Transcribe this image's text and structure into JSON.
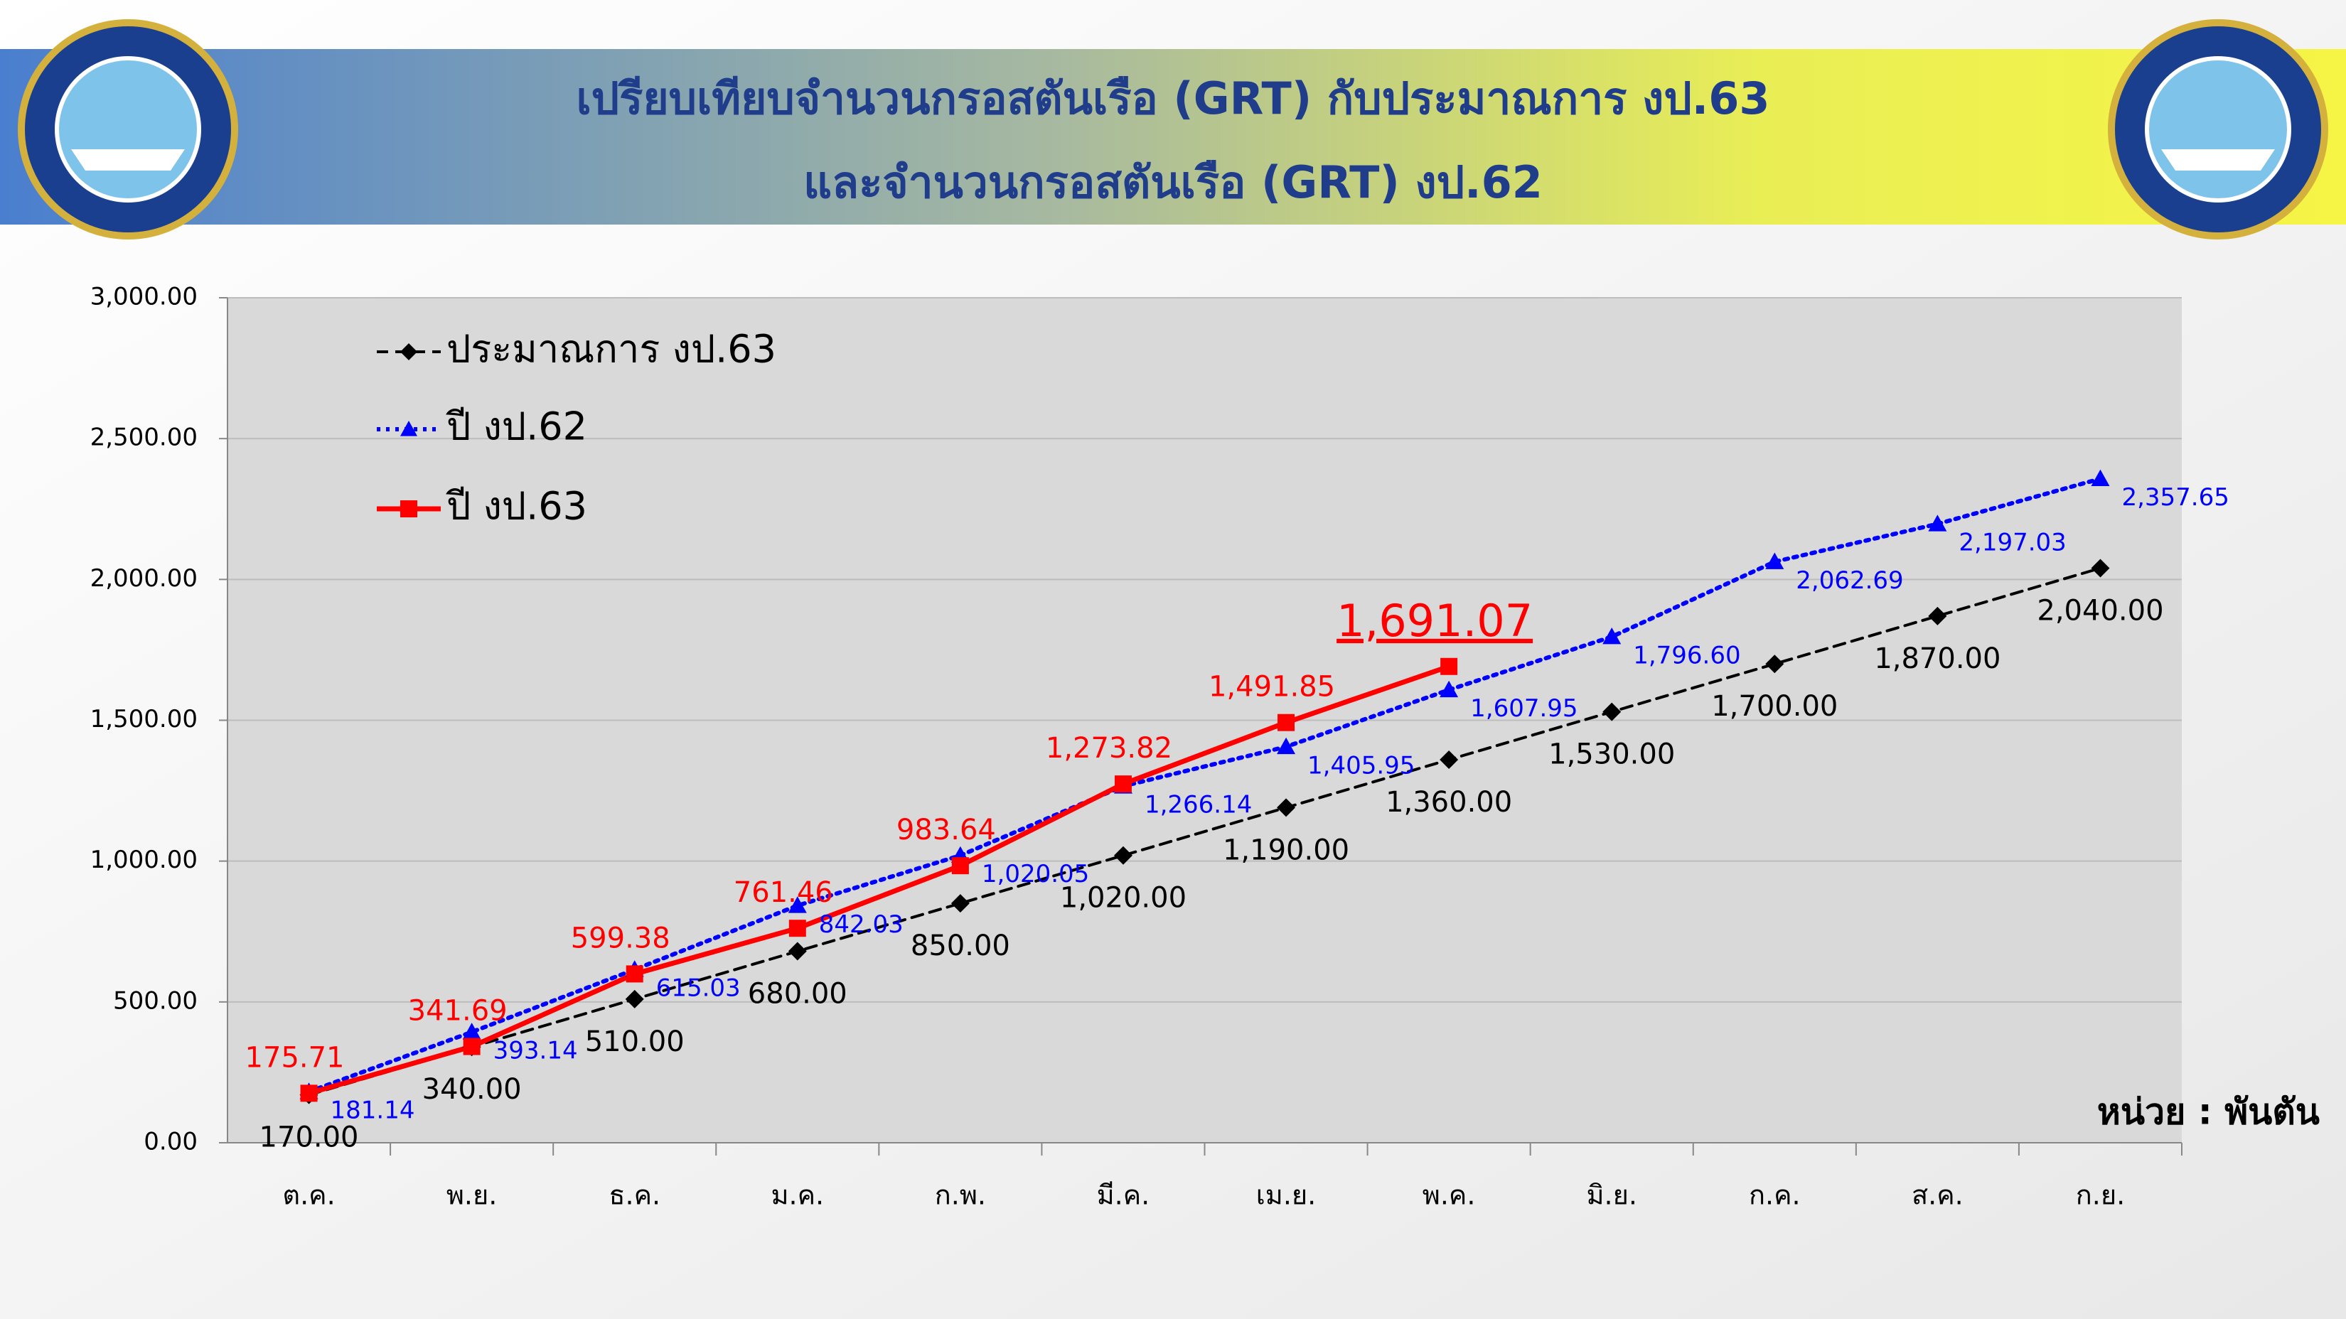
{
  "chart_data": {
    "type": "line",
    "title": "เปรียบเทียบจำนวนกรอสตันเรือ (GRT) กับประมาณการ งป.63",
    "subtitle": "และจำนวนกรอสตันเรือ (GRT) งป.62",
    "annotation": "หน่วย : พันตัน",
    "categories": [
      "ต.ค.",
      "พ.ย.",
      "ธ.ค.",
      "ม.ค.",
      "ก.พ.",
      "มี.ค.",
      "เม.ย.",
      "พ.ค.",
      "มิ.ย.",
      "ก.ค.",
      "ส.ค.",
      "ก.ย."
    ],
    "ylim": [
      0,
      3000
    ],
    "yticks": [
      {
        "value": 0,
        "label": "0.00"
      },
      {
        "value": 500,
        "label": "500.00"
      },
      {
        "value": 1000,
        "label": "1,000.00"
      },
      {
        "value": 1500,
        "label": "1,500.00"
      },
      {
        "value": 2000,
        "label": "2,000.00"
      },
      {
        "value": 2500,
        "label": "2,500.00"
      },
      {
        "value": 3000,
        "label": "3,000.00"
      }
    ],
    "grid": true,
    "legend": "upper left",
    "series": [
      {
        "name": "ประมาณการ งป.63",
        "color": "#000000",
        "line_style": "dashed",
        "marker": "diamond",
        "values": [
          170,
          340,
          510,
          680,
          850,
          1020,
          1190,
          1360,
          1530,
          1700,
          1870,
          2040
        ],
        "value_labels": [
          "170.00",
          "340.00",
          "510.00",
          "680.00",
          "850.00",
          "1,020.00",
          "1,190.00",
          "1,360.00",
          "1,530.00",
          "1,700.00",
          "1,870.00",
          "2,040.00"
        ]
      },
      {
        "name": "ปี งป.62",
        "color": "#0000ff",
        "line_style": "dotted",
        "marker": "triangle",
        "values": [
          181.14,
          393.14,
          615.03,
          842.03,
          1020.05,
          1266.14,
          1405.95,
          1607.95,
          1796.6,
          2062.69,
          2197.03,
          2357.65
        ],
        "value_labels": [
          "181.14",
          "393.14",
          "615.03",
          "842.03",
          "1,020.05",
          "1,266.14",
          "1,405.95",
          "1,607.95",
          "1,796.60",
          "2,062.69",
          "2,197.03",
          "2,357.65"
        ]
      },
      {
        "name": "ปี งป.63",
        "color": "#ff0000",
        "line_style": "solid",
        "marker": "square",
        "values": [
          175.71,
          341.69,
          599.38,
          761.46,
          983.64,
          1273.82,
          1491.85,
          1691.07,
          null,
          null,
          null,
          null
        ],
        "value_labels": [
          "175.71",
          "341.69",
          "599.38",
          "761.46",
          "983.64",
          "1,273.82",
          "1,491.85",
          "1,691.07",
          null,
          null,
          null,
          null
        ]
      }
    ]
  }
}
